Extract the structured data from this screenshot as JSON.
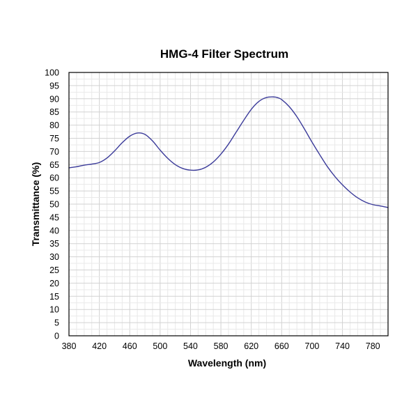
{
  "chart_data": {
    "type": "line",
    "title": "HMG-4 Filter Spectrum",
    "xlabel": "Wavelength (nm)",
    "ylabel": "Transmittance (%)",
    "xlim": [
      380,
      800
    ],
    "ylim": [
      0,
      100
    ],
    "x_ticks": [
      380,
      420,
      460,
      500,
      540,
      580,
      620,
      660,
      700,
      740,
      780
    ],
    "y_ticks": [
      0,
      5,
      10,
      15,
      20,
      25,
      30,
      35,
      40,
      45,
      50,
      55,
      60,
      65,
      70,
      75,
      80,
      85,
      90,
      95,
      100
    ],
    "grid": true,
    "line_color": "#3b3b9a",
    "series": [
      {
        "x": [
          380,
          390,
          400,
          410,
          420,
          430,
          440,
          450,
          460,
          470,
          480,
          490,
          500,
          510,
          520,
          530,
          540,
          550,
          560,
          570,
          580,
          590,
          600,
          610,
          620,
          630,
          640,
          650,
          655,
          660,
          670,
          680,
          690,
          700,
          710,
          720,
          730,
          740,
          750,
          760,
          770,
          780,
          790,
          800
        ],
        "y": [
          63.8,
          64.2,
          64.8,
          65.2,
          65.8,
          67.5,
          70.2,
          73.3,
          75.8,
          77.0,
          76.5,
          74.0,
          70.5,
          67.4,
          65.0,
          63.5,
          62.9,
          63.0,
          64.0,
          66.0,
          69.0,
          72.8,
          77.3,
          81.8,
          86.0,
          89.0,
          90.5,
          90.7,
          90.4,
          89.7,
          87.0,
          83.2,
          78.5,
          73.5,
          68.8,
          64.3,
          60.5,
          57.3,
          54.6,
          52.4,
          50.8,
          49.8,
          49.3,
          48.7
        ]
      }
    ]
  }
}
